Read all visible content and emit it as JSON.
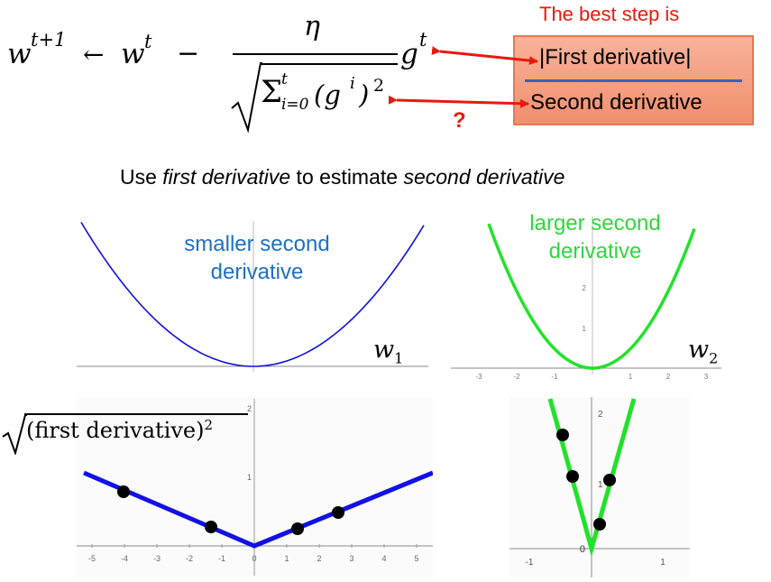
{
  "equation": {
    "lhs_w": "w",
    "lhs_sup": "t+1",
    "arrow": "←",
    "w": "w",
    "w_sup": "t",
    "minus": "−",
    "eta": "η",
    "g": "g",
    "g_sup": "t",
    "sum": "Σ",
    "sum_sub": "i=0",
    "sum_sup": "t",
    "sum_body": "(g",
    "sum_body_sup": "i",
    "sum_close": ")",
    "sum_sq": "2"
  },
  "callout": {
    "title": "The best step is",
    "numerator": "|First derivative|",
    "denominator": "Second derivative",
    "question_mark": "?",
    "arrow_color": "#e8190f"
  },
  "caption": {
    "prefix": "Use ",
    "em1": "first derivative",
    "middle": " to estimate ",
    "em2": "second derivative"
  },
  "panels": {
    "top_left": {
      "label_line1": "smaller second",
      "label_line2": "derivative",
      "axis_label": "w",
      "axis_label_sub": "1",
      "curve_color": "#1010e0"
    },
    "top_right": {
      "label_line1": "larger second",
      "label_line2": "derivative",
      "axis_label": "w",
      "axis_label_sub": "2",
      "curve_color": "#22e22a",
      "y_ticks": [
        "1",
        "2"
      ],
      "x_ticks": [
        "-3",
        "-2",
        "-1",
        "1",
        "2",
        "3"
      ]
    },
    "bottom_left": {
      "sqrt_label": "(first derivative)",
      "sqrt_sup": "2",
      "curve_color": "#1111e6",
      "x_ticks": [
        "-5",
        "-4",
        "-3",
        "-2",
        "-1",
        "0",
        "1",
        "2",
        "3",
        "4",
        "5"
      ],
      "y_ticks": [
        "1",
        "2"
      ],
      "dot_color": "#000000"
    },
    "bottom_right": {
      "curve_color": "#22e22a",
      "x_ticks": [
        "-1",
        "1"
      ],
      "y_ticks": [
        "1",
        "2"
      ],
      "origin_label": "0",
      "dot_color": "#000000"
    }
  }
}
